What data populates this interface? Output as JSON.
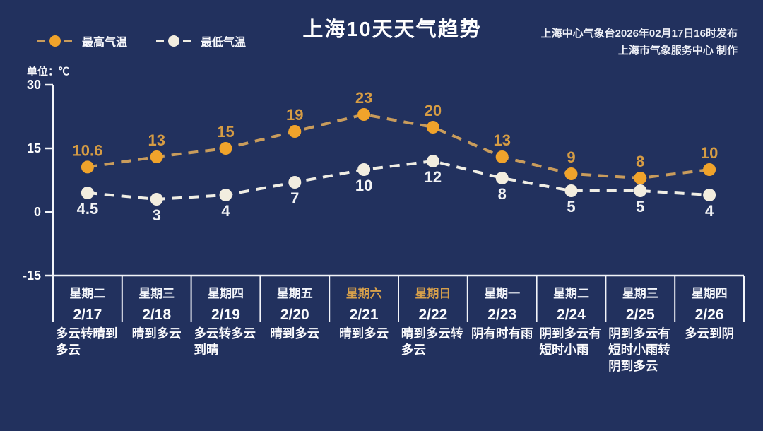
{
  "header": {
    "title": "上海10天天气趋势",
    "issued_by": "上海中心气象台2026年02月17日16时发布",
    "produced_by": "上海市气象服务中心  制作"
  },
  "legend": {
    "high_label": "最高气温",
    "low_label": "最低气温"
  },
  "unit_label": "单位：℃",
  "colors": {
    "background": "#22315E",
    "axis": "#F2F4F9",
    "high_marker": "#F0A32B",
    "high_line": "#C99C5C",
    "high_value_label": "#D69C44",
    "low_marker": "#F2EDDF",
    "low_line": "#EFEDE4",
    "low_value_label": "#F2F3F5",
    "weekday_text": "#F3F5FA",
    "weekend_text": "#D7A04B",
    "date_text": "#FBFCFE",
    "weather_text": "#FBFBFD"
  },
  "chart_data": {
    "type": "line",
    "title": "上海10天天气趋势",
    "unit": "℃",
    "ylabel": "单位：℃",
    "ylim": [
      -15,
      30
    ],
    "yticks": [
      30,
      15,
      0,
      -15
    ],
    "grid": false,
    "legend_position": "top-left",
    "line_style": "dashed",
    "categories": [
      "2/17",
      "2/18",
      "2/19",
      "2/20",
      "2/21",
      "2/22",
      "2/23",
      "2/24",
      "2/25",
      "2/26"
    ],
    "days": [
      {
        "weekday": "星期二",
        "date": "2/17",
        "weekend": false,
        "weather": "多云转晴到多云"
      },
      {
        "weekday": "星期三",
        "date": "2/18",
        "weekend": false,
        "weather": "晴到多云"
      },
      {
        "weekday": "星期四",
        "date": "2/19",
        "weekend": false,
        "weather": "多云转多云到晴"
      },
      {
        "weekday": "星期五",
        "date": "2/20",
        "weekend": false,
        "weather": "晴到多云"
      },
      {
        "weekday": "星期六",
        "date": "2/21",
        "weekend": true,
        "weather": "晴到多云"
      },
      {
        "weekday": "星期日",
        "date": "2/22",
        "weekend": true,
        "weather": "晴到多云转多云"
      },
      {
        "weekday": "星期一",
        "date": "2/23",
        "weekend": false,
        "weather": "阴有时有雨"
      },
      {
        "weekday": "星期二",
        "date": "2/24",
        "weekend": false,
        "weather": "阴到多云有短时小雨"
      },
      {
        "weekday": "星期三",
        "date": "2/25",
        "weekend": false,
        "weather": "阴到多云有短时小雨转阴到多云"
      },
      {
        "weekday": "星期四",
        "date": "2/26",
        "weekend": false,
        "weather": "多云到阴"
      }
    ],
    "series": [
      {
        "name": "最高气温",
        "values": [
          10.6,
          13,
          15,
          19,
          23,
          20,
          13,
          9,
          8,
          10
        ]
      },
      {
        "name": "最低气温",
        "values": [
          4.5,
          3,
          4,
          7,
          10,
          12,
          8,
          5,
          5,
          4
        ]
      }
    ]
  }
}
